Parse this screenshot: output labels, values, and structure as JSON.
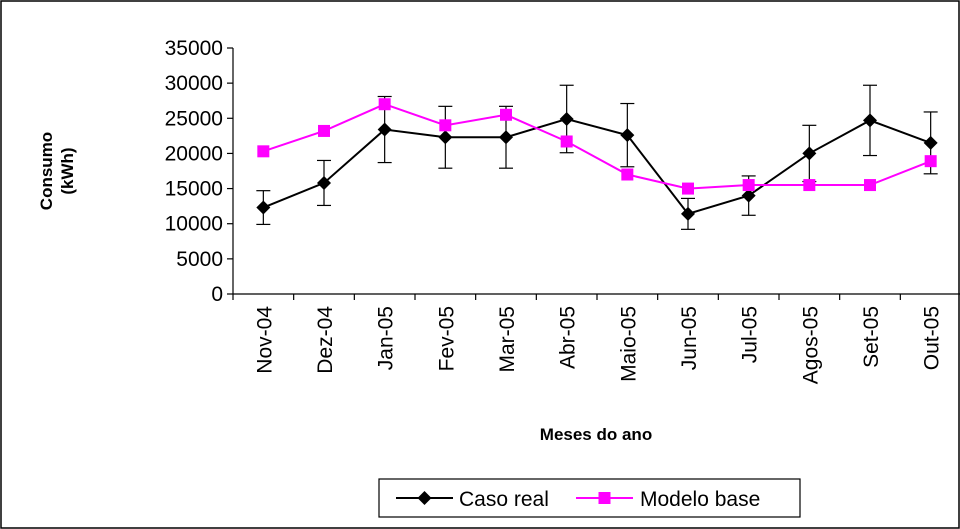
{
  "chart_data": {
    "type": "line",
    "title": "",
    "xlabel": "Meses do ano",
    "ylabel": [
      "Consumo",
      "(kWh)"
    ],
    "categories": [
      "Nov-04",
      "Dez-04",
      "Jan-05",
      "Fev-05",
      "Mar-05",
      "Abr-05",
      "Maio-05",
      "Jun-05",
      "Jul-05",
      "Agos-05",
      "Set-05",
      "Out-05"
    ],
    "ylim": [
      0,
      35000
    ],
    "yticks": [
      0,
      5000,
      10000,
      15000,
      20000,
      25000,
      30000,
      35000
    ],
    "grid": false,
    "legend_position": "bottom",
    "series": [
      {
        "name": "Caso real",
        "color": "#000000",
        "marker": "diamond",
        "values": [
          12300,
          15800,
          23400,
          22300,
          22300,
          24900,
          22600,
          11400,
          14000,
          20000,
          24700,
          21500
        ],
        "error": [
          2400,
          3200,
          4700,
          4400,
          4400,
          4800,
          4500,
          2200,
          2800,
          4000,
          5000,
          4400
        ]
      },
      {
        "name": "Modelo base",
        "color": "#ff00ff",
        "marker": "square",
        "values": [
          20300,
          23200,
          27000,
          24000,
          25500,
          21700,
          17000,
          15000,
          15500,
          15500,
          15500,
          18900
        ]
      }
    ]
  }
}
